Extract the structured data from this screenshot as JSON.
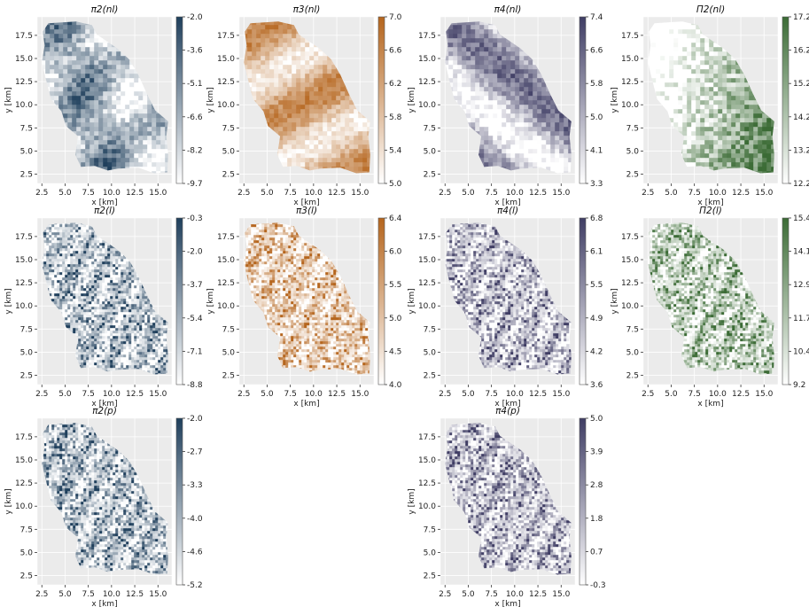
{
  "figure": {
    "colors": {
      "blue": "#1f3f5c",
      "orange": "#b5651d",
      "purple": "#3f3d64",
      "green": "#3b6b35",
      "panel_bg": "#ebebeb",
      "grid": "#ffffff"
    }
  },
  "chart_data": [
    {
      "type": "heatmap",
      "title": "π2(nl)",
      "xlabel": "x [km]",
      "ylabel": "y [km]",
      "xlim": [
        2,
        16.5
      ],
      "ylim": [
        1.5,
        19.5
      ],
      "xticks": [
        "2.5",
        "5.0",
        "7.5",
        "10.0",
        "12.5",
        "15.0"
      ],
      "yticks": [
        "2.5",
        "5.0",
        "7.5",
        "10.0",
        "12.5",
        "15.0",
        "17.5"
      ],
      "colorbar": {
        "ticks": [
          "-2.0",
          "-3.6",
          "-5.1",
          "-6.6",
          "-8.2",
          "-9.7"
        ],
        "range": [
          -9.7,
          -2.0
        ],
        "color": "blue"
      },
      "grid": true
    },
    {
      "type": "heatmap",
      "title": "π3(nl)",
      "xlabel": "x [km]",
      "ylabel": "y [km]",
      "xlim": [
        2,
        16.5
      ],
      "ylim": [
        1.5,
        19.5
      ],
      "xticks": [
        "2.5",
        "5.0",
        "7.5",
        "10.0",
        "12.5",
        "15.0"
      ],
      "yticks": [
        "2.5",
        "5.0",
        "7.5",
        "10.0",
        "12.5",
        "15.0",
        "17.5"
      ],
      "colorbar": {
        "ticks": [
          "7.0",
          "6.6",
          "6.2",
          "5.8",
          "5.4",
          "5.0"
        ],
        "range": [
          5.0,
          7.0
        ],
        "color": "orange"
      },
      "grid": true
    },
    {
      "type": "heatmap",
      "title": "π4(nl)",
      "xlabel": "x [km]",
      "ylabel": "y [km]",
      "xlim": [
        2,
        16.5
      ],
      "ylim": [
        1.5,
        19.5
      ],
      "xticks": [
        "2.5",
        "5.0",
        "7.5",
        "10.0",
        "12.5",
        "15.0"
      ],
      "yticks": [
        "2.5",
        "5.0",
        "7.5",
        "10.0",
        "12.5",
        "15.0",
        "17.5"
      ],
      "colorbar": {
        "ticks": [
          "7.4",
          "6.6",
          "5.8",
          "5.0",
          "4.1",
          "3.3"
        ],
        "range": [
          3.3,
          7.4
        ],
        "color": "purple"
      },
      "grid": true
    },
    {
      "type": "heatmap",
      "title": "Π2(nl)",
      "xlabel": "x [km]",
      "ylabel": "y [km]",
      "xlim": [
        2,
        16.5
      ],
      "ylim": [
        1.5,
        19.5
      ],
      "xticks": [
        "2.5",
        "5.0",
        "7.5",
        "10.0",
        "12.5",
        "15.0"
      ],
      "yticks": [
        "2.5",
        "5.0",
        "7.5",
        "10.0",
        "12.5",
        "15.0",
        "17.5"
      ],
      "colorbar": {
        "ticks": [
          "17.2",
          "16.2",
          "15.2",
          "14.2",
          "13.2",
          "12.2"
        ],
        "range": [
          12.2,
          17.2
        ],
        "color": "green"
      },
      "grid": true
    },
    {
      "type": "heatmap",
      "title": "π2(l)",
      "xlabel": "x [km]",
      "ylabel": "y [km]",
      "xlim": [
        2,
        16.5
      ],
      "ylim": [
        1.5,
        19.5
      ],
      "xticks": [
        "2.5",
        "5.0",
        "7.5",
        "10.0",
        "12.5",
        "15.0"
      ],
      "yticks": [
        "2.5",
        "5.0",
        "7.5",
        "10.0",
        "12.5",
        "15.0",
        "17.5"
      ],
      "colorbar": {
        "ticks": [
          "-0.3",
          "-2.0",
          "-3.7",
          "-5.4",
          "-7.1",
          "-8.8"
        ],
        "range": [
          -8.8,
          -0.3
        ],
        "color": "blue"
      },
      "grid": true
    },
    {
      "type": "heatmap",
      "title": "π3(l)",
      "xlabel": "x [km]",
      "ylabel": "y [km]",
      "xlim": [
        2,
        16.5
      ],
      "ylim": [
        1.5,
        19.5
      ],
      "xticks": [
        "2.5",
        "5.0",
        "7.5",
        "10.0",
        "12.5",
        "15.0"
      ],
      "yticks": [
        "2.5",
        "5.0",
        "7.5",
        "10.0",
        "12.5",
        "15.0",
        "17.5"
      ],
      "colorbar": {
        "ticks": [
          "6.4",
          "6.0",
          "5.5",
          "5.0",
          "4.5",
          "4.0"
        ],
        "range": [
          4.0,
          6.4
        ],
        "color": "orange"
      },
      "grid": true
    },
    {
      "type": "heatmap",
      "title": "π4(l)",
      "xlabel": "x [km]",
      "ylabel": "y [km]",
      "xlim": [
        2,
        16.5
      ],
      "ylim": [
        1.5,
        19.5
      ],
      "xticks": [
        "2.5",
        "5.0",
        "7.5",
        "10.0",
        "12.5",
        "15.0"
      ],
      "yticks": [
        "2.5",
        "5.0",
        "7.5",
        "10.0",
        "12.5",
        "15.0",
        "17.5"
      ],
      "colorbar": {
        "ticks": [
          "6.8",
          "6.1",
          "5.5",
          "4.9",
          "4.2",
          "3.6"
        ],
        "range": [
          3.6,
          6.8
        ],
        "color": "purple"
      },
      "grid": true
    },
    {
      "type": "heatmap",
      "title": "Π2(l)",
      "xlabel": "x [km]",
      "ylabel": "y [km]",
      "xlim": [
        2,
        16.5
      ],
      "ylim": [
        1.5,
        19.5
      ],
      "xticks": [
        "2.5",
        "5.0",
        "7.5",
        "10.0",
        "12.5",
        "15.0"
      ],
      "yticks": [
        "2.5",
        "5.0",
        "7.5",
        "10.0",
        "12.5",
        "15.0",
        "17.5"
      ],
      "colorbar": {
        "ticks": [
          "15.4",
          "14.1",
          "12.9",
          "11.7",
          "10.4",
          "9.2"
        ],
        "range": [
          9.2,
          15.4
        ],
        "color": "green"
      },
      "grid": true
    },
    {
      "type": "heatmap",
      "title": "π2(p)",
      "xlabel": "x [km]",
      "ylabel": "y [km]",
      "xlim": [
        2,
        16.5
      ],
      "ylim": [
        1.5,
        19.5
      ],
      "xticks": [
        "2.5",
        "5.0",
        "7.5",
        "10.0",
        "12.5",
        "15.0"
      ],
      "yticks": [
        "2.5",
        "5.0",
        "7.5",
        "10.0",
        "12.5",
        "15.0",
        "17.5"
      ],
      "colorbar": {
        "ticks": [
          "-2.0",
          "-2.7",
          "-3.3",
          "-4.0",
          "-4.6",
          "-5.2"
        ],
        "range": [
          -5.2,
          -2.0
        ],
        "color": "blue"
      },
      "grid": true
    },
    {
      "type": "heatmap",
      "title": "π4(p)",
      "xlabel": "x [km]",
      "ylabel": "y [km]",
      "xlim": [
        2,
        16.5
      ],
      "ylim": [
        1.5,
        19.5
      ],
      "xticks": [
        "2.5",
        "5.0",
        "7.5",
        "10.0",
        "12.5",
        "15.0"
      ],
      "yticks": [
        "2.5",
        "5.0",
        "7.5",
        "10.0",
        "12.5",
        "15.0",
        "17.5"
      ],
      "colorbar": {
        "ticks": [
          "5.0",
          "3.9",
          "2.8",
          "1.8",
          "0.7",
          "-0.3"
        ],
        "range": [
          -0.3,
          5.0
        ],
        "color": "purple"
      },
      "grid": true
    }
  ]
}
